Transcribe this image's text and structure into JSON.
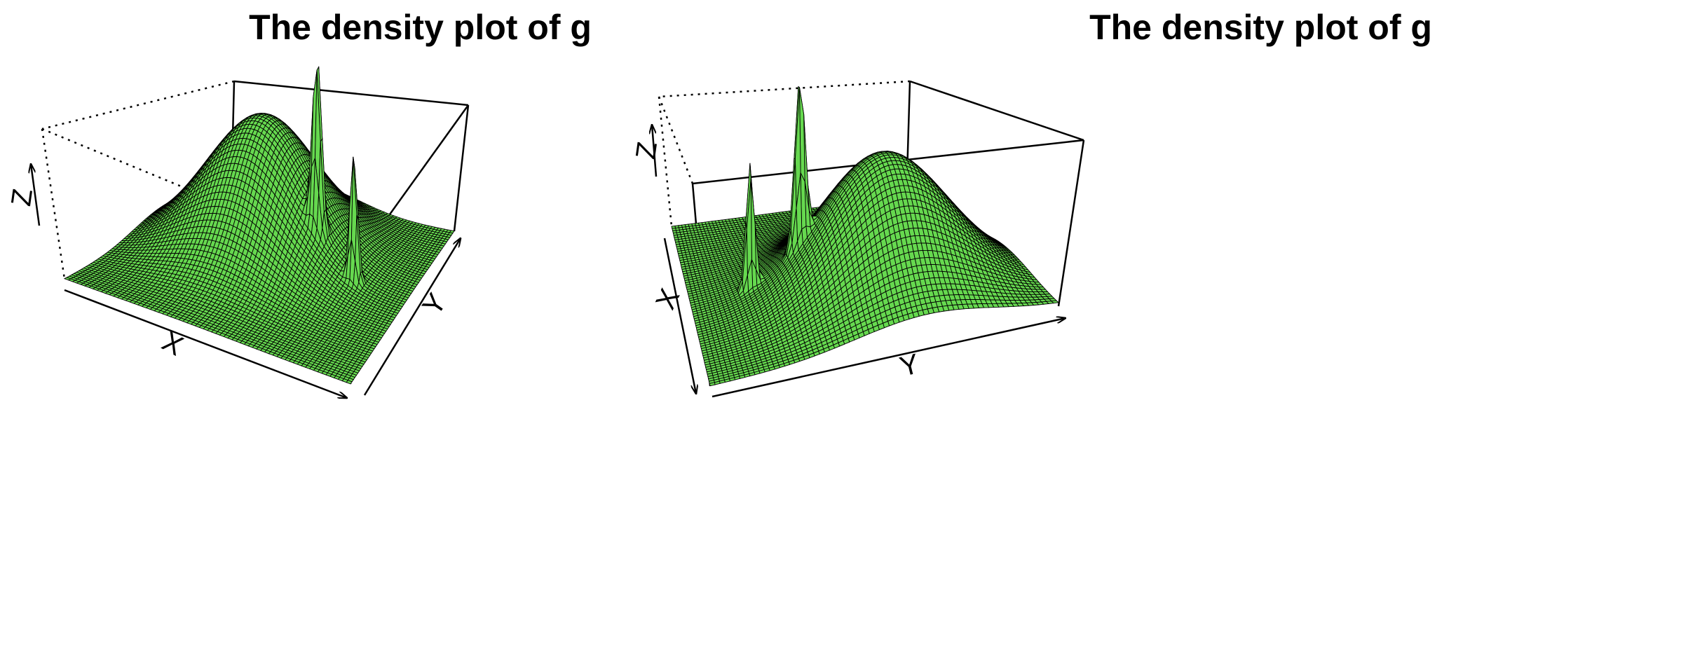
{
  "chart_data": [
    {
      "type": "surface3d",
      "title": "The density plot of g",
      "xlabel": "X",
      "ylabel": "Y",
      "zlabel": "Z",
      "view": "X axis along front edge, Y axis receding right",
      "surface_color": "#66d94f",
      "edge_color": "#000000",
      "components": [
        {
          "name": "broad peak",
          "x": 0.38,
          "y": 0.62,
          "spread": 0.2,
          "relative_height": 0.62
        },
        {
          "name": "narrow spike 1",
          "x": 0.64,
          "y": 0.55,
          "spread": 0.016,
          "relative_height": 0.8
        },
        {
          "name": "narrow spike 2",
          "x": 0.8,
          "y": 0.52,
          "spread": 0.013,
          "relative_height": 0.62
        }
      ]
    },
    {
      "type": "surface3d",
      "title": "The density plot of g",
      "xlabel": "X",
      "ylabel": "Y",
      "zlabel": "Z",
      "view": "Y axis along front edge, X axis receding left",
      "surface_color": "#66d94f",
      "edge_color": "#000000",
      "components": [
        {
          "name": "broad peak",
          "x": 0.38,
          "y": 0.62,
          "spread": 0.2,
          "relative_height": 0.62
        },
        {
          "name": "narrow spike 1",
          "x": 0.64,
          "y": 0.55,
          "spread": 0.016,
          "relative_height": 0.8
        },
        {
          "name": "narrow spike 2",
          "x": 0.8,
          "y": 0.52,
          "spread": 0.013,
          "relative_height": 0.62
        }
      ]
    }
  ]
}
